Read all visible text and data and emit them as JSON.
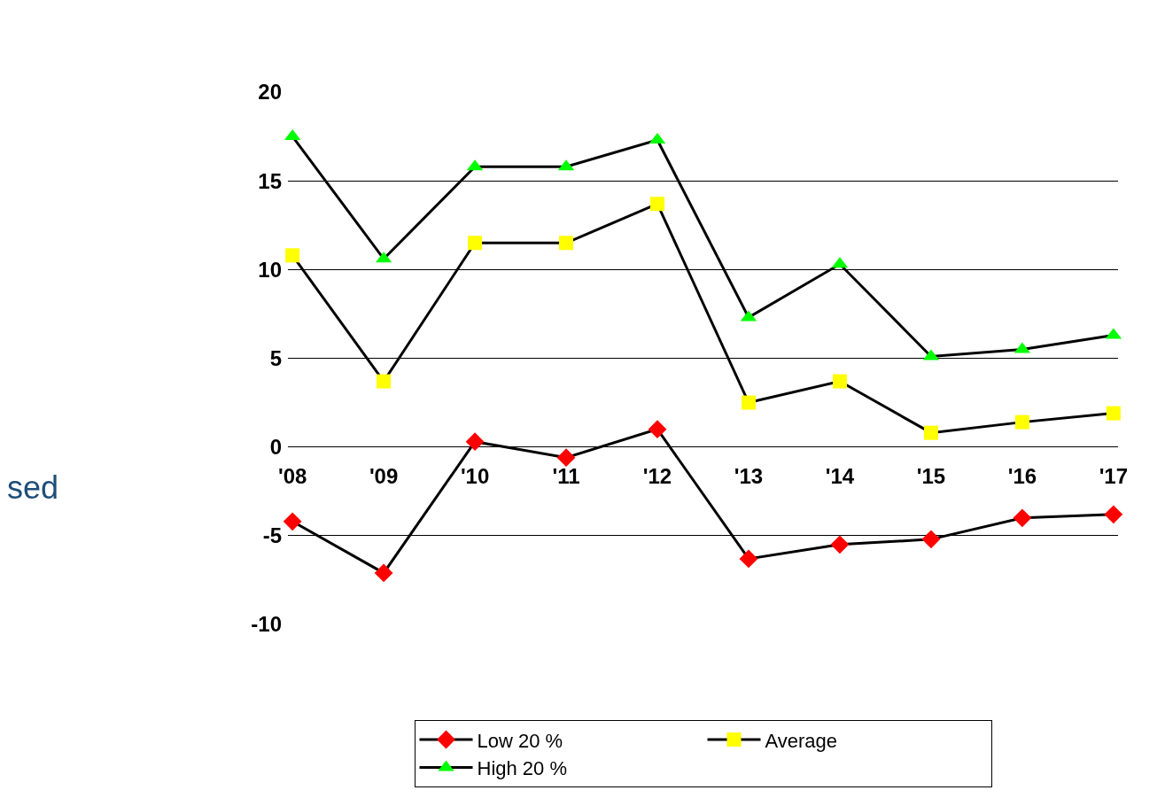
{
  "chart_data": {
    "type": "line",
    "categories": [
      "'08",
      "'09",
      "'10",
      "'11",
      "'12",
      "'13",
      "'14",
      "'15",
      "'16",
      "'17"
    ],
    "series": [
      {
        "name": "Low 20 %",
        "color": "#ff0000",
        "marker": "diamond",
        "values": [
          -4.2,
          -7.1,
          0.3,
          -0.6,
          1.0,
          -6.3,
          -5.5,
          -5.2,
          -4.0,
          -3.8
        ]
      },
      {
        "name": "Average",
        "color": "#ffff00",
        "marker": "square",
        "values": [
          10.8,
          3.7,
          11.5,
          11.5,
          13.7,
          2.5,
          3.7,
          0.8,
          1.4,
          1.9
        ]
      },
      {
        "name": "High 20 %",
        "color": "#00ff00",
        "marker": "triangle",
        "values": [
          17.5,
          10.6,
          15.8,
          15.8,
          17.3,
          7.3,
          10.3,
          5.1,
          5.5,
          6.3
        ]
      }
    ],
    "ylim": [
      -10,
      20
    ],
    "yticks": [
      -10,
      -5,
      0,
      5,
      10,
      15,
      20
    ],
    "grid": "y",
    "legend": "bottom",
    "annotations": [
      "sed"
    ]
  }
}
